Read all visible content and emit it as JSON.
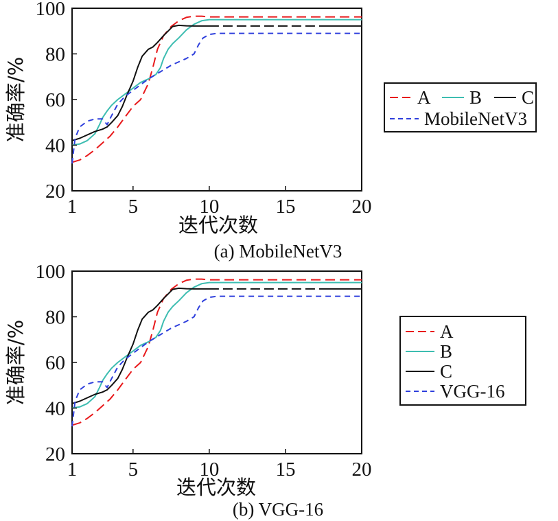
{
  "chart_data": [
    {
      "type": "line",
      "caption": "(a) MobileNetV3",
      "xlabel": "迭代次数",
      "ylabel": "准确率/%",
      "xlim": [
        1,
        20
      ],
      "ylim": [
        20,
        100
      ],
      "xticks": [
        1,
        5,
        10,
        15,
        20
      ],
      "yticks": [
        20,
        40,
        60,
        80,
        100
      ],
      "grid": false,
      "legend_position": "right",
      "series": [
        {
          "name": "A",
          "color": "#e8191b",
          "dash": "long-dash",
          "x": [
            1,
            1.5,
            2,
            2.5,
            3,
            3.5,
            4,
            4.5,
            5,
            5.5,
            6,
            6.3,
            6.6,
            7,
            7.5,
            8,
            8.5,
            9,
            9.5,
            10,
            11,
            12,
            13,
            14,
            15,
            16,
            17,
            18,
            19,
            20
          ],
          "y": [
            32.5,
            33.5,
            35.5,
            38,
            41,
            44,
            48,
            52.5,
            57,
            60,
            67,
            74,
            82,
            88,
            92,
            94.5,
            96,
            96.5,
            96.5,
            96.2,
            96.2,
            96.2,
            96.2,
            96.2,
            96.2,
            96.2,
            96.2,
            96.2,
            96.2,
            96.2
          ]
        },
        {
          "name": "B",
          "color": "#3dbdb1",
          "dash": "solid",
          "x": [
            1,
            1.5,
            2,
            2.5,
            2.8,
            3,
            3.3,
            3.6,
            4,
            4.5,
            5,
            5.5,
            6,
            6.5,
            6.8,
            7,
            7.3,
            7.6,
            8,
            8.5,
            9,
            9.5,
            10,
            11,
            12,
            13,
            14,
            15,
            16,
            17,
            18,
            19,
            20
          ],
          "y": [
            40,
            40.5,
            42,
            45,
            49,
            52,
            55,
            57.5,
            60,
            62.5,
            65,
            67.5,
            69,
            71,
            74,
            78,
            82,
            84.5,
            87,
            90.5,
            93,
            94.5,
            95,
            95,
            95,
            95,
            95,
            95,
            95,
            95,
            95,
            95,
            95
          ]
        },
        {
          "name": "C",
          "color": "#111111",
          "dash": "mixed",
          "x": [
            1,
            1.5,
            2,
            2.5,
            3,
            3.3,
            3.6,
            4,
            4.3,
            4.6,
            5,
            5.3,
            5.6,
            6,
            6.3,
            6.6,
            7,
            7.3,
            7.6,
            8,
            8.5,
            9,
            9.5,
            10,
            11,
            12,
            13,
            14,
            15,
            16,
            17,
            18,
            19,
            20
          ],
          "y": [
            42,
            43,
            44.5,
            46,
            47,
            48,
            50,
            53,
            57,
            62,
            68,
            74,
            79,
            82,
            83,
            85,
            88,
            90,
            92,
            92.5,
            92.3,
            92.2,
            92.2,
            92.2,
            92.2,
            92.2,
            92.2,
            92.2,
            92.2,
            92.2,
            92.2,
            92.2,
            92.2,
            92.2
          ]
        },
        {
          "name": "MobileNetV3",
          "color": "#2e3fdc",
          "dash": "short-dash",
          "x": [
            1,
            1.2,
            1.5,
            2,
            2.5,
            3,
            3.3,
            3.6,
            4,
            4.5,
            5,
            5.5,
            6,
            6.5,
            7,
            7.5,
            8,
            8.5,
            9,
            9.3,
            9.6,
            10,
            10.5,
            11,
            12,
            13,
            14,
            15,
            16,
            17,
            18,
            19,
            20
          ],
          "y": [
            32,
            43,
            48,
            50.5,
            51.5,
            51.5,
            49,
            53,
            58,
            61.5,
            64,
            66.5,
            69,
            71,
            73,
            75,
            76.5,
            78,
            80,
            84,
            87,
            88.5,
            89,
            89,
            89,
            89,
            89,
            89,
            89,
            89,
            89,
            89,
            89
          ]
        }
      ]
    },
    {
      "type": "line",
      "caption": "(b) VGG-16",
      "xlabel": "迭代次数",
      "ylabel": "准确率/%",
      "xlim": [
        1,
        20
      ],
      "ylim": [
        20,
        100
      ],
      "xticks": [
        1,
        5,
        10,
        15,
        20
      ],
      "yticks": [
        20,
        40,
        60,
        80,
        100
      ],
      "grid": false,
      "legend_position": "right",
      "series": [
        {
          "name": "A",
          "color": "#e8191b",
          "dash": "long-dash",
          "x": [
            1,
            1.5,
            2,
            2.5,
            3,
            3.5,
            4,
            4.5,
            5,
            5.5,
            6,
            6.3,
            6.6,
            7,
            7.5,
            8,
            8.5,
            9,
            9.5,
            10,
            11,
            12,
            13,
            14,
            15,
            16,
            17,
            18,
            19,
            20
          ],
          "y": [
            32.5,
            33.5,
            35.5,
            38,
            41,
            44,
            48,
            52.5,
            57,
            60,
            67,
            74,
            82,
            88,
            92,
            94.5,
            96,
            96.5,
            96.5,
            96.2,
            96.2,
            96.2,
            96.2,
            96.2,
            96.2,
            96.2,
            96.2,
            96.2,
            96.2,
            96.2
          ]
        },
        {
          "name": "B",
          "color": "#3dbdb1",
          "dash": "solid",
          "x": [
            1,
            1.5,
            2,
            2.5,
            2.8,
            3,
            3.3,
            3.6,
            4,
            4.5,
            5,
            5.5,
            6,
            6.5,
            6.8,
            7,
            7.3,
            7.6,
            8,
            8.5,
            9,
            9.5,
            10,
            11,
            12,
            13,
            14,
            15,
            16,
            17,
            18,
            19,
            20
          ],
          "y": [
            40,
            40.5,
            42,
            45,
            49,
            52,
            55,
            57.5,
            60,
            62.5,
            65,
            67.5,
            69,
            71,
            74,
            78,
            82,
            84.5,
            87,
            90.5,
            93,
            94.5,
            95,
            95,
            95,
            95,
            95,
            95,
            95,
            95,
            95,
            95,
            95
          ]
        },
        {
          "name": "C",
          "color": "#111111",
          "dash": "mixed",
          "x": [
            1,
            1.5,
            2,
            2.5,
            3,
            3.3,
            3.6,
            4,
            4.3,
            4.6,
            5,
            5.3,
            5.6,
            6,
            6.3,
            6.6,
            7,
            7.3,
            7.6,
            8,
            8.5,
            9,
            9.5,
            10,
            11,
            12,
            13,
            14,
            15,
            16,
            17,
            18,
            19,
            20
          ],
          "y": [
            42,
            43,
            44.5,
            46,
            47,
            48,
            50,
            53,
            57,
            62,
            68,
            74,
            79,
            82,
            83,
            85,
            88,
            90,
            92,
            92.5,
            92.3,
            92.2,
            92.2,
            92.2,
            92.2,
            92.2,
            92.2,
            92.2,
            92.2,
            92.2,
            92.2,
            92.2,
            92.2,
            92.2
          ]
        },
        {
          "name": "VGG-16",
          "color": "#2e3fdc",
          "dash": "short-dash",
          "x": [
            1,
            1.2,
            1.5,
            2,
            2.5,
            3,
            3.3,
            3.6,
            4,
            4.5,
            5,
            5.5,
            6,
            6.5,
            7,
            7.5,
            8,
            8.5,
            9,
            9.3,
            9.6,
            10,
            10.5,
            11,
            12,
            13,
            14,
            15,
            16,
            17,
            18,
            19,
            20
          ],
          "y": [
            32,
            43,
            48,
            50.5,
            51.5,
            51.5,
            49,
            53,
            58,
            61.5,
            64,
            66.5,
            69,
            71,
            73,
            75,
            76.5,
            78,
            80,
            84,
            87,
            88.5,
            89,
            89,
            89,
            89,
            89,
            89,
            89,
            89,
            89,
            89,
            89
          ]
        }
      ]
    }
  ]
}
